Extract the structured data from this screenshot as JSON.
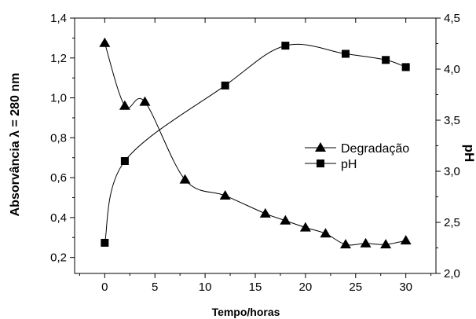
{
  "chart_data": {
    "type": "line",
    "xlabel": "Tempo/horas",
    "ylabel_left": "Absorvância λ = 280 nm",
    "ylabel_right": "pH",
    "xlim": [
      -3,
      33
    ],
    "ylim_left": [
      0.12,
      1.4
    ],
    "ylim_right": [
      2.0,
      4.5
    ],
    "x_ticks": [
      0,
      5,
      10,
      15,
      20,
      25,
      30
    ],
    "x_tick_labels": [
      "0",
      "5",
      "10",
      "15",
      "20",
      "25",
      "30"
    ],
    "y_left_ticks": [
      0.2,
      0.4,
      0.6,
      0.8,
      1.0,
      1.2,
      1.4
    ],
    "y_left_tick_labels": [
      "0,2",
      "0,4",
      "0,6",
      "0,8",
      "1,0",
      "1,2",
      "1,4"
    ],
    "y_right_ticks": [
      2.0,
      2.5,
      3.0,
      3.5,
      4.0,
      4.5
    ],
    "y_right_tick_labels": [
      "2,0",
      "2,5",
      "3,0",
      "3,5",
      "4,0",
      "4,5"
    ],
    "legend_position": "center-right",
    "grid": false,
    "series": [
      {
        "name": "Degradação",
        "axis": "left",
        "marker": "triangle",
        "color": "#000000",
        "x": [
          0,
          2,
          4,
          8,
          12,
          16,
          18,
          20,
          22,
          24,
          26,
          28,
          30
        ],
        "y": [
          1.275,
          0.96,
          0.98,
          0.59,
          0.51,
          0.42,
          0.385,
          0.35,
          0.32,
          0.265,
          0.27,
          0.265,
          0.285
        ]
      },
      {
        "name": "pH",
        "axis": "right",
        "marker": "square",
        "color": "#000000",
        "x": [
          0,
          2,
          12,
          18,
          24,
          28,
          30
        ],
        "y": [
          2.3,
          3.1,
          3.84,
          4.23,
          4.15,
          4.09,
          4.02
        ]
      }
    ]
  }
}
